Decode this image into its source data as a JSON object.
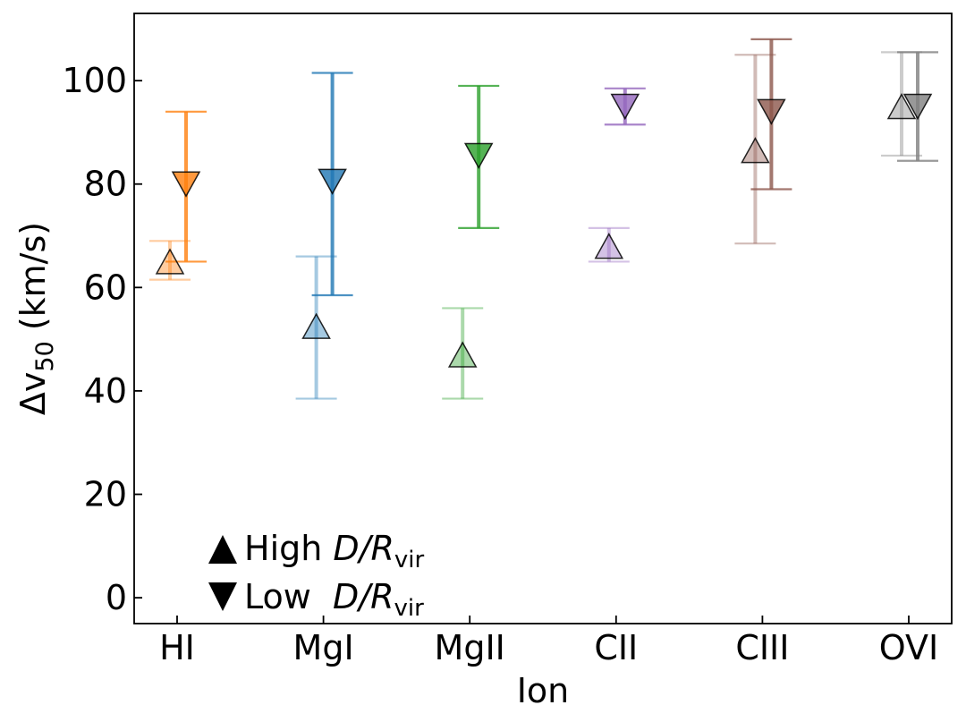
{
  "chart_data": {
    "type": "scatter",
    "title": "",
    "xlabel": "Ion",
    "ylabel_main": "Δv",
    "ylabel_sub": "50",
    "ylabel_unit": " (km/s)",
    "categories": [
      "HI",
      "MgI",
      "MgII",
      "CII",
      "CIII",
      "OVI"
    ],
    "colors": [
      "#ff7f0e",
      "#1f77b4",
      "#2ca02c",
      "#9467bd",
      "#8c564b",
      "#7f7f7f"
    ],
    "ylim": [
      -5,
      113
    ],
    "yticks": [
      0,
      20,
      40,
      60,
      80,
      100
    ],
    "series": [
      {
        "name": "High D/R_vir",
        "marker": "triangle-up",
        "alpha": 0.4,
        "values": [
          65,
          52.5,
          47,
          68,
          86.5,
          95
        ],
        "err_low": [
          61.5,
          38.5,
          38.5,
          65,
          68.5,
          85.5
        ],
        "err_high": [
          69,
          66,
          56,
          71.5,
          105,
          105.5
        ]
      },
      {
        "name": "Low D/R_vir",
        "marker": "triangle-down",
        "alpha": 0.8,
        "values": [
          80,
          80.5,
          85.5,
          95,
          94,
          95
        ],
        "err_low": [
          65,
          58.5,
          71.5,
          91.5,
          79,
          84.5
        ],
        "err_high": [
          94,
          101.5,
          99,
          98.5,
          108,
          105.5
        ]
      }
    ],
    "legend": {
      "position": "bottom-left",
      "entries": [
        {
          "label_main": "High ",
          "label_italic": "D/R",
          "label_sub": "vir"
        },
        {
          "label_main": "Low  ",
          "label_italic": "D/R",
          "label_sub": "vir"
        }
      ]
    }
  }
}
